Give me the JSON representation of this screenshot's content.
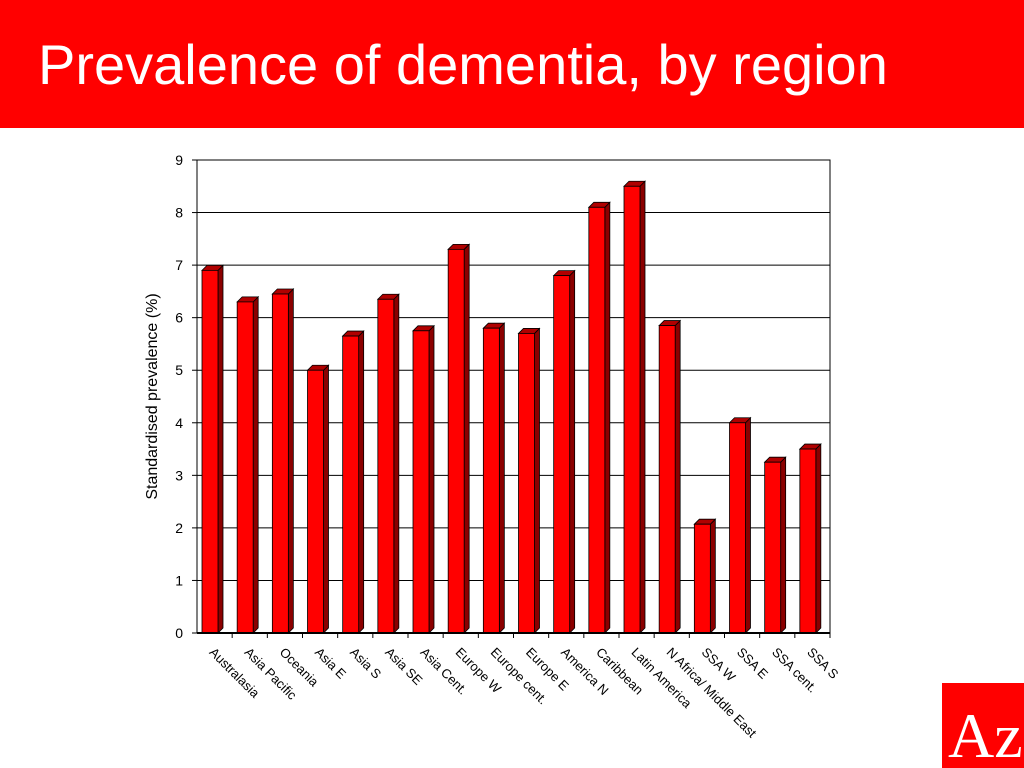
{
  "header": {
    "title": "Prevalence of dementia, by region"
  },
  "logo": {
    "text": "Az"
  },
  "colors": {
    "accent": "#ff0000",
    "bar": "#ff0000",
    "bar_side": "#8b0000",
    "bar_top": "#b00000"
  },
  "chart_data": {
    "type": "bar",
    "title": "",
    "xlabel": "",
    "ylabel": "Standardised prevalence (%)",
    "ylim": [
      0,
      9
    ],
    "yticks": [
      0,
      1,
      2,
      3,
      4,
      5,
      6,
      7,
      8,
      9
    ],
    "grid": true,
    "categories": [
      "Australasia",
      "Asia Pacific",
      "Oceania",
      "Asia E",
      "Asia S",
      "Asia SE",
      "Asia Cent.",
      "Europe W",
      "Europe cent.",
      "Europe E",
      "America N",
      "Caribbean",
      "Latin America",
      "N Africa/ Middle East",
      "SSA W",
      "SSA E",
      "SSA cent.",
      "SSA S"
    ],
    "values": [
      6.9,
      6.3,
      6.45,
      5.0,
      5.65,
      6.35,
      5.75,
      7.3,
      5.8,
      5.7,
      6.8,
      8.1,
      8.5,
      5.85,
      2.07,
      4.0,
      3.25,
      3.5
    ]
  }
}
